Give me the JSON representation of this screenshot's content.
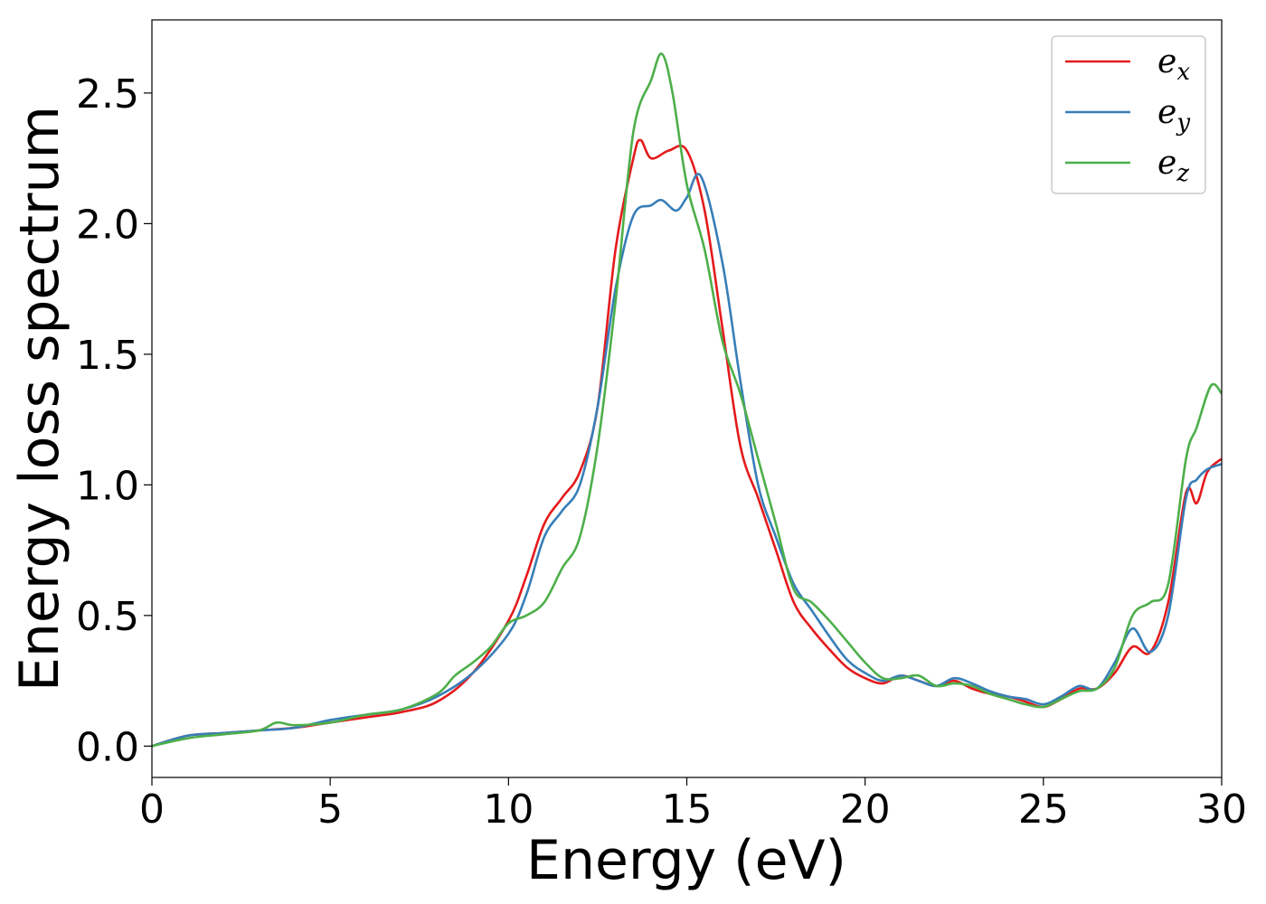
{
  "chart_data": {
    "type": "line",
    "title": "",
    "xlabel": "Energy (eV)",
    "ylabel": "Energy loss spectrum",
    "xlim": [
      0,
      30
    ],
    "ylim": [
      -0.12,
      2.78
    ],
    "xticks": [
      "0",
      "5",
      "10",
      "15",
      "20",
      "25",
      "30"
    ],
    "yticks": [
      "0.0",
      "0.5",
      "1.0",
      "1.5",
      "2.0",
      "2.5"
    ],
    "grid": false,
    "legend_position": "top-right",
    "series": [
      {
        "name": "e_x",
        "legend_base": "e",
        "legend_sub": "x",
        "color": "#e41a1c",
        "x": [
          0,
          1,
          2,
          3,
          4,
          5,
          6,
          7,
          8,
          9,
          10,
          10.5,
          11,
          11.5,
          12,
          12.5,
          13,
          13.5,
          13.7,
          14,
          14.5,
          15,
          15.5,
          16,
          16.5,
          17,
          17.5,
          18,
          18.5,
          19,
          19.5,
          20,
          20.5,
          21,
          21.5,
          22,
          22.5,
          23,
          23.5,
          24,
          24.5,
          25,
          25.5,
          26,
          26.5,
          27,
          27.5,
          28,
          28.5,
          29,
          29.3,
          29.6,
          30
        ],
        "y": [
          0.0,
          0.04,
          0.05,
          0.06,
          0.07,
          0.09,
          0.11,
          0.13,
          0.17,
          0.28,
          0.48,
          0.65,
          0.85,
          0.95,
          1.05,
          1.3,
          1.9,
          2.25,
          2.32,
          2.25,
          2.28,
          2.28,
          2.05,
          1.6,
          1.15,
          0.95,
          0.75,
          0.55,
          0.45,
          0.37,
          0.3,
          0.26,
          0.24,
          0.27,
          0.25,
          0.23,
          0.25,
          0.22,
          0.2,
          0.19,
          0.17,
          0.15,
          0.18,
          0.22,
          0.22,
          0.28,
          0.38,
          0.36,
          0.55,
          0.97,
          0.93,
          1.05,
          1.1
        ]
      },
      {
        "name": "e_y",
        "legend_base": "e",
        "legend_sub": "y",
        "color": "#377eb8",
        "x": [
          0,
          1,
          2,
          3,
          4,
          5,
          6,
          7,
          8,
          9,
          10,
          10.5,
          11,
          11.5,
          12,
          12.5,
          13,
          13.5,
          14,
          14.3,
          14.7,
          15,
          15.4,
          16,
          16.5,
          17,
          17.5,
          18,
          18.5,
          19,
          19.5,
          20,
          20.5,
          21,
          21.5,
          22,
          22.5,
          23,
          23.5,
          24,
          24.5,
          25,
          25.5,
          26,
          26.5,
          27,
          27.5,
          28,
          28.5,
          29,
          29.3,
          29.6,
          30
        ],
        "y": [
          0.0,
          0.04,
          0.05,
          0.06,
          0.07,
          0.1,
          0.12,
          0.14,
          0.19,
          0.28,
          0.43,
          0.58,
          0.8,
          0.9,
          1.0,
          1.3,
          1.75,
          2.03,
          2.07,
          2.09,
          2.05,
          2.1,
          2.18,
          1.85,
          1.4,
          1.0,
          0.8,
          0.62,
          0.52,
          0.42,
          0.33,
          0.28,
          0.25,
          0.27,
          0.25,
          0.23,
          0.26,
          0.24,
          0.21,
          0.19,
          0.18,
          0.16,
          0.19,
          0.23,
          0.22,
          0.32,
          0.45,
          0.36,
          0.5,
          0.95,
          1.02,
          1.06,
          1.08
        ]
      },
      {
        "name": "e_z",
        "legend_base": "e",
        "legend_sub": "z",
        "color": "#4daf4a",
        "x": [
          0,
          1,
          2,
          3,
          3.5,
          4,
          5,
          6,
          7,
          8,
          8.5,
          9,
          9.5,
          10,
          10.5,
          11,
          11.5,
          12,
          12.5,
          13,
          13.5,
          14,
          14.3,
          14.6,
          15,
          15.5,
          16,
          16.5,
          17,
          17.5,
          18,
          18.5,
          19,
          19.5,
          20,
          20.5,
          21,
          21.5,
          22,
          22.5,
          23,
          23.5,
          24,
          24.5,
          25,
          25.5,
          26,
          26.5,
          27,
          27.5,
          28,
          28.5,
          29,
          29.3,
          29.7,
          30
        ],
        "y": [
          0.0,
          0.03,
          0.045,
          0.06,
          0.09,
          0.08,
          0.09,
          0.12,
          0.14,
          0.2,
          0.27,
          0.32,
          0.38,
          0.47,
          0.5,
          0.55,
          0.68,
          0.8,
          1.15,
          1.7,
          2.35,
          2.55,
          2.65,
          2.5,
          2.15,
          1.9,
          1.55,
          1.35,
          1.1,
          0.85,
          0.6,
          0.55,
          0.48,
          0.4,
          0.32,
          0.26,
          0.26,
          0.27,
          0.23,
          0.24,
          0.23,
          0.2,
          0.18,
          0.16,
          0.15,
          0.18,
          0.21,
          0.22,
          0.3,
          0.5,
          0.55,
          0.62,
          1.1,
          1.22,
          1.38,
          1.35
        ]
      }
    ]
  }
}
